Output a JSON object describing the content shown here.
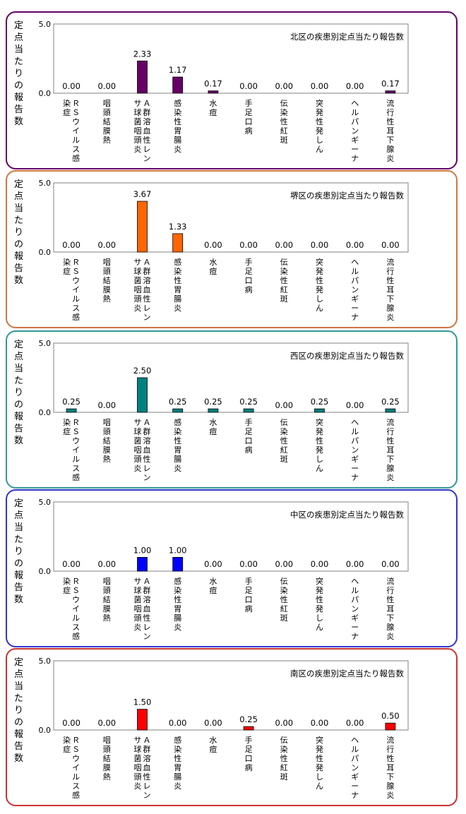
{
  "chart_data": [
    {
      "type": "bar",
      "title": "北区の疾患別定点当たり報告数",
      "ylabel": "定点当たりの報告数",
      "ylim": [
        0,
        5.0
      ],
      "yticks": [
        "0.0",
        "5.0"
      ],
      "categories": [
        "ＲＳウイルス感染症",
        "咽頭結膜熱",
        "Ａ群溶血性レンサ球菌咽頭炎",
        "感染性胃腸炎",
        "水痘",
        "手足口病",
        "伝染性紅斑",
        "突発性発しん",
        "ヘルパンギーナ",
        "流行性耳下腺炎"
      ],
      "values": [
        0.0,
        0.0,
        2.33,
        1.17,
        0.17,
        0.0,
        0.0,
        0.0,
        0.0,
        0.17
      ],
      "labels": [
        "0.00",
        "0.00",
        "2.33",
        "1.17",
        "0.17",
        "0.00",
        "0.00",
        "0.00",
        "0.00",
        "0.17"
      ],
      "color": "#660066",
      "border_color": "#660066"
    },
    {
      "type": "bar",
      "title": "堺区の疾患別定点当たり報告数",
      "ylabel": "定点当たりの報告数",
      "ylim": [
        0,
        5.0
      ],
      "yticks": [
        "0.0",
        "5.0"
      ],
      "categories": [
        "ＲＳウイルス感染症",
        "咽頭結膜熱",
        "Ａ群溶血性レンサ球菌咽頭炎",
        "感染性胃腸炎",
        "水痘",
        "手足口病",
        "伝染性紅斑",
        "突発性発しん",
        "ヘルパンギーナ",
        "流行性耳下腺炎"
      ],
      "values": [
        0.0,
        0.0,
        3.67,
        1.33,
        0.0,
        0.0,
        0.0,
        0.0,
        0.0,
        0.0
      ],
      "labels": [
        "0.00",
        "0.00",
        "3.67",
        "1.33",
        "0.00",
        "0.00",
        "0.00",
        "0.00",
        "0.00",
        "0.00"
      ],
      "color": "#ff6600",
      "border_color": "#cc7744"
    },
    {
      "type": "bar",
      "title": "西区の疾患別定点当たり報告数",
      "ylabel": "定点当たりの報告数",
      "ylim": [
        0,
        5.0
      ],
      "yticks": [
        "0.0",
        "5.0"
      ],
      "categories": [
        "ＲＳウイルス感染症",
        "咽頭結膜熱",
        "Ａ群溶血性レンサ球菌咽頭炎",
        "感染性胃腸炎",
        "水痘",
        "手足口病",
        "伝染性紅斑",
        "突発性発しん",
        "ヘルパンギーナ",
        "流行性耳下腺炎"
      ],
      "values": [
        0.25,
        0.0,
        2.5,
        0.25,
        0.25,
        0.25,
        0.0,
        0.25,
        0.0,
        0.25
      ],
      "labels": [
        "0.25",
        "0.00",
        "2.50",
        "0.25",
        "0.25",
        "0.25",
        "0.00",
        "0.25",
        "0.00",
        "0.25"
      ],
      "color": "#008080",
      "border_color": "#339999"
    },
    {
      "type": "bar",
      "title": "中区の疾患別定点当たり報告数",
      "ylabel": "定点当たりの報告数",
      "ylim": [
        0,
        5.0
      ],
      "yticks": [
        "0.0",
        "5.0"
      ],
      "categories": [
        "ＲＳウイルス感染症",
        "咽頭結膜熱",
        "Ａ群溶血性レンサ球菌咽頭炎",
        "感染性胃腸炎",
        "水痘",
        "手足口病",
        "伝染性紅斑",
        "突発性発しん",
        "ヘルパンギーナ",
        "流行性耳下腺炎"
      ],
      "values": [
        0.0,
        0.0,
        1.0,
        1.0,
        0.0,
        0.0,
        0.0,
        0.0,
        0.0,
        0.0
      ],
      "labels": [
        "0.00",
        "0.00",
        "1.00",
        "1.00",
        "0.00",
        "0.00",
        "0.00",
        "0.00",
        "0.00",
        "0.00"
      ],
      "color": "#0000ff",
      "border_color": "#3333cc"
    },
    {
      "type": "bar",
      "title": "南区の疾患別定点当たり報告数",
      "ylabel": "定点当たりの報告数",
      "ylim": [
        0,
        5.0
      ],
      "yticks": [
        "0.0",
        "5.0"
      ],
      "categories": [
        "ＲＳウイルス感染症",
        "咽頭結膜熱",
        "Ａ群溶血性レンサ球菌咽頭炎",
        "感染性胃腸炎",
        "水痘",
        "手足口病",
        "伝染性紅斑",
        "突発性発しん",
        "ヘルパンギーナ",
        "流行性耳下腺炎"
      ],
      "values": [
        0.0,
        0.0,
        1.5,
        0.0,
        0.0,
        0.25,
        0.0,
        0.0,
        0.0,
        0.5
      ],
      "labels": [
        "0.00",
        "0.00",
        "1.50",
        "0.00",
        "0.00",
        "0.25",
        "0.00",
        "0.00",
        "0.00",
        "0.50"
      ],
      "color": "#ff0000",
      "border_color": "#cc3333"
    }
  ]
}
